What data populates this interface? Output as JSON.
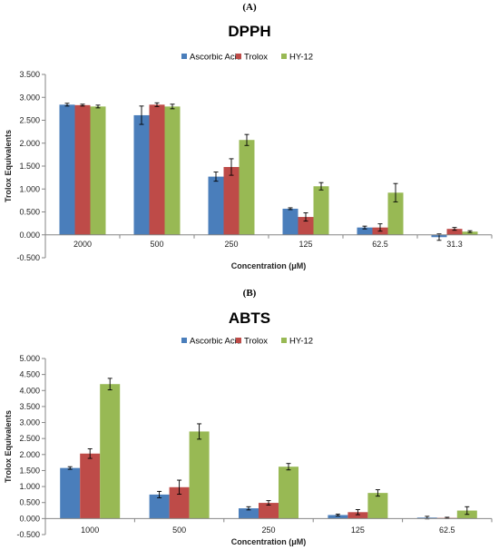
{
  "colors": {
    "ascorbic": "#4a7ebb",
    "trolox": "#be4b48",
    "hy12": "#98b954",
    "axis": "#868686",
    "error": "#000000"
  },
  "chart_data": [
    {
      "panel_label": "(A)",
      "type": "bar",
      "title": "DPPH",
      "xlabel": "Concentration (μM)",
      "ylabel": "Trolox Equivalents",
      "categories": [
        "2000",
        "500",
        "250",
        "125",
        "62.5",
        "31.3"
      ],
      "ylim": [
        -0.5,
        3.5
      ],
      "yticks": [
        "3.500",
        "3.000",
        "2.500",
        "2.000",
        "1.500",
        "1.000",
        "0.500",
        "0.000",
        "-0.500"
      ],
      "ytick_values": [
        3.5,
        3.0,
        2.5,
        2.0,
        1.5,
        1.0,
        0.5,
        0.0,
        -0.5
      ],
      "legend_position": "top-center",
      "grid": false,
      "series": [
        {
          "name": "Ascorbic Acid",
          "values": [
            2.84,
            2.61,
            1.27,
            0.57,
            0.16,
            -0.05
          ],
          "errors": [
            0.03,
            0.2,
            0.1,
            0.02,
            0.03,
            0.07
          ]
        },
        {
          "name": "Trolox",
          "values": [
            2.83,
            2.84,
            1.48,
            0.39,
            0.16,
            0.13
          ],
          "errors": [
            0.02,
            0.04,
            0.18,
            0.09,
            0.08,
            0.03
          ]
        },
        {
          "name": "HY-12",
          "values": [
            2.8,
            2.8,
            2.07,
            1.06,
            0.92,
            0.07
          ],
          "errors": [
            0.03,
            0.05,
            0.12,
            0.08,
            0.2,
            0.02
          ]
        }
      ]
    },
    {
      "panel_label": "(B)",
      "type": "bar",
      "title": "ABTS",
      "xlabel": "Concentration (μM)",
      "ylabel": "Trolox Equivalents",
      "categories": [
        "1000",
        "500",
        "250",
        "125",
        "62.5"
      ],
      "ylim": [
        -0.5,
        5.0
      ],
      "yticks": [
        "5.000",
        "4.500",
        "4.000",
        "3.500",
        "3.000",
        "2.500",
        "2.000",
        "1.500",
        "1.000",
        "0.500",
        "0.000",
        "-0.500"
      ],
      "ytick_values": [
        5.0,
        4.5,
        4.0,
        3.5,
        3.0,
        2.5,
        2.0,
        1.5,
        1.0,
        0.5,
        0.0,
        -0.5
      ],
      "legend_position": "top-center",
      "grid": false,
      "series": [
        {
          "name": "Ascorbic Acid",
          "values": [
            1.58,
            0.75,
            0.32,
            0.11,
            0.03
          ],
          "errors": [
            0.04,
            0.1,
            0.05,
            0.03,
            0.04
          ]
        },
        {
          "name": "Trolox",
          "values": [
            2.03,
            0.98,
            0.49,
            0.2,
            0.02
          ],
          "errors": [
            0.15,
            0.22,
            0.07,
            0.08,
            0.02
          ]
        },
        {
          "name": "HY-12",
          "values": [
            4.2,
            2.72,
            1.62,
            0.8,
            0.25
          ],
          "errors": [
            0.18,
            0.24,
            0.1,
            0.1,
            0.12
          ]
        }
      ]
    }
  ]
}
